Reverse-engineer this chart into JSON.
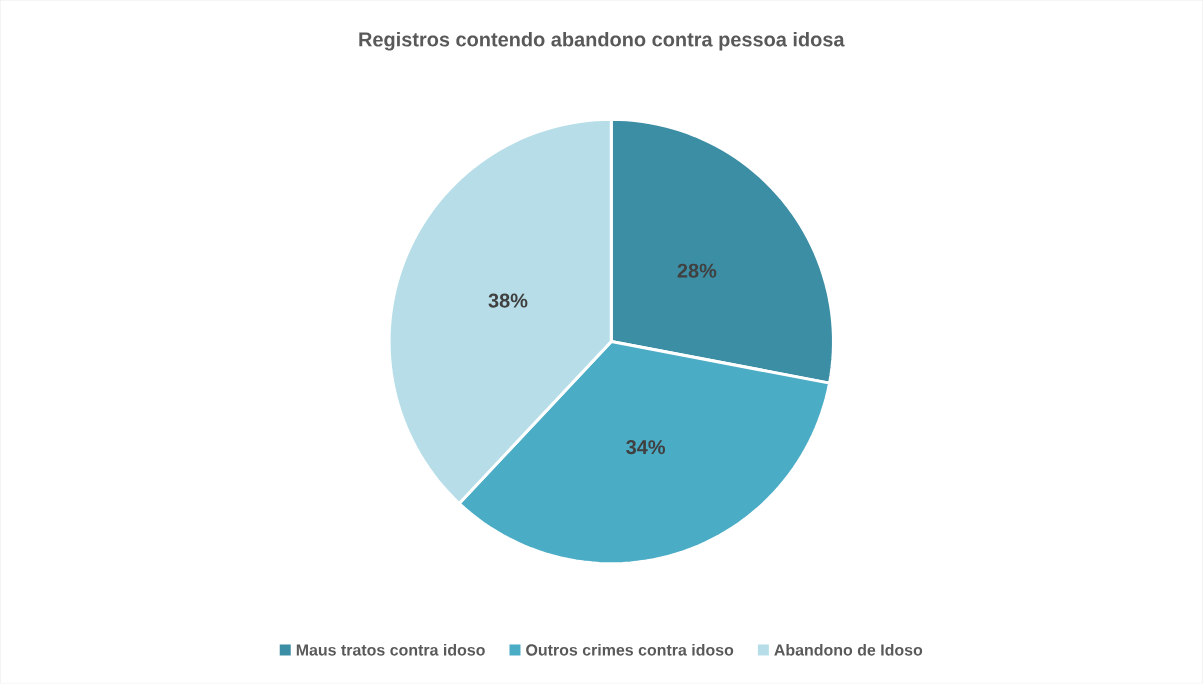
{
  "chart_data": {
    "type": "pie",
    "title": "Registros contendo abandono contra pessoa idosa",
    "categories": [
      "Maus tratos contra idoso",
      "Outros crimes contra idoso",
      "Abandono de Idoso"
    ],
    "values": [
      28,
      34,
      38
    ],
    "colors": [
      "#3c8ea5",
      "#4bacc6",
      "#b7dee8"
    ],
    "value_labels": [
      "28%",
      "34%",
      "38%"
    ],
    "legend": "bottom"
  }
}
